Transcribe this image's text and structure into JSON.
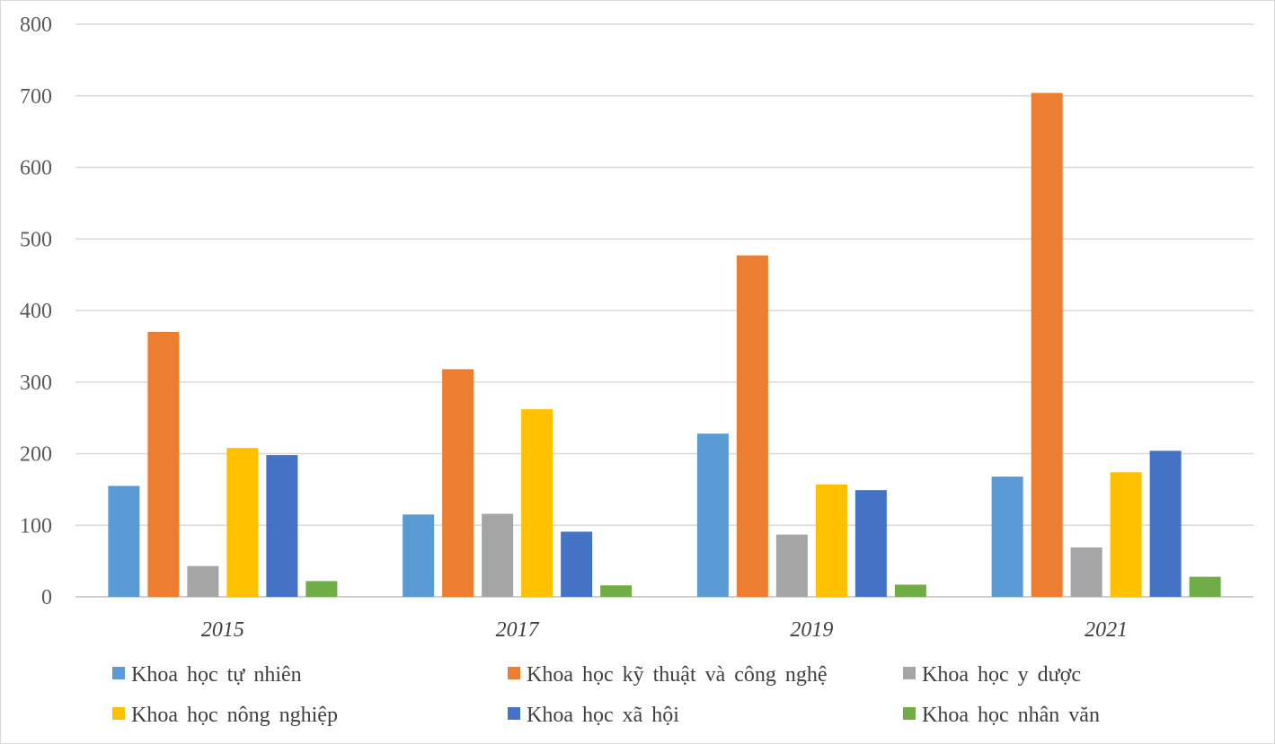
{
  "chart_data": {
    "type": "bar",
    "title": "",
    "xlabel": "",
    "ylabel": "",
    "ylim": [
      0,
      800
    ],
    "yticks": [
      0,
      100,
      200,
      300,
      400,
      500,
      600,
      700,
      800
    ],
    "grid": true,
    "legend_position": "bottom",
    "categories": [
      "2015",
      "2017",
      "2019",
      "2021"
    ],
    "series": [
      {
        "name": "Khoa học tự nhiên",
        "color": "#5b9bd5",
        "values": [
          155,
          115,
          228,
          168
        ]
      },
      {
        "name": "Khoa học kỹ thuật và công nghệ",
        "color": "#ed7d31",
        "values": [
          370,
          318,
          477,
          704
        ]
      },
      {
        "name": "Khoa học y dược",
        "color": "#a5a5a5",
        "values": [
          43,
          116,
          87,
          69
        ]
      },
      {
        "name": "Khoa học nông nghiệp",
        "color": "#ffc000",
        "values": [
          208,
          262,
          157,
          174
        ]
      },
      {
        "name": "Khoa học xã hội",
        "color": "#4472c4",
        "values": [
          198,
          91,
          149,
          204
        ]
      },
      {
        "name": "Khoa học nhân văn",
        "color": "#70ad47",
        "values": [
          22,
          16,
          17,
          28
        ]
      }
    ]
  }
}
